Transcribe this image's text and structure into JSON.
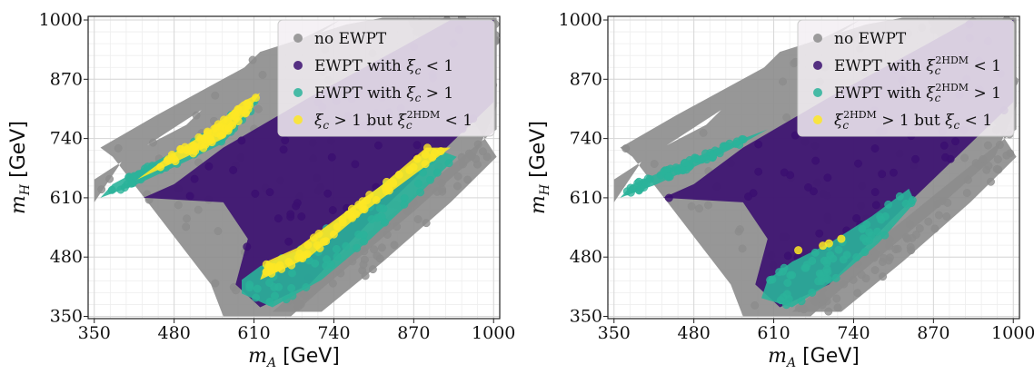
{
  "chart_data": [
    {
      "type": "scatter",
      "panel": "left",
      "title": "",
      "xlabel_var": "m",
      "xlabel_sub": "A",
      "xlabel_unit": "[GeV]",
      "ylabel_var": "m",
      "ylabel_sub": "H",
      "ylabel_unit": "[GeV]",
      "xlim": [
        340,
        1010
      ],
      "ylim": [
        345,
        1008
      ],
      "xticks": [
        350,
        480,
        610,
        740,
        870,
        1000
      ],
      "yticks": [
        350,
        480,
        610,
        740,
        870,
        1000
      ],
      "grid": true,
      "minor_grid": true,
      "legend_position": "top-right",
      "series": [
        {
          "name": "no EWPT",
          "color": "#8c8c8c",
          "regions": [
            [
              [
                350,
                650
              ],
              [
                350,
                600
              ],
              [
                400,
                700
              ],
              [
                500,
                770
              ],
              [
                620,
                930
              ],
              [
                760,
                990
              ],
              [
                820,
                1005
              ],
              [
                1005,
                1005
              ],
              [
                1005,
                810
              ],
              [
                970,
                700
              ],
              [
                870,
                580
              ],
              [
                720,
                410
              ],
              [
                670,
                350
              ],
              [
                560,
                350
              ],
              [
                540,
                420
              ],
              [
                380,
                700
              ],
              [
                360,
                720
              ],
              [
                450,
                790
              ],
              [
                600,
                900
              ],
              [
                750,
                1000
              ]
            ],
            [
              [
                860,
                1000
              ],
              [
                1005,
                1000
              ],
              [
                1005,
                760
              ],
              [
                930,
                680
              ],
              [
                820,
                560
              ],
              [
                700,
                430
              ],
              [
                640,
                360
              ],
              [
                720,
                360
              ],
              [
                820,
                470
              ],
              [
                930,
                600
              ],
              [
                1005,
                700
              ]
            ]
          ]
        },
        {
          "name": "EWPT with ξ_c < 1",
          "color": "#3b0f70",
          "regions": [
            [
              [
                430,
                610
              ],
              [
                560,
                600
              ],
              [
                600,
                520
              ],
              [
                580,
                420
              ],
              [
                620,
                370
              ],
              [
                700,
                420
              ],
              [
                800,
                560
              ],
              [
                900,
                690
              ],
              [
                1000,
                820
              ],
              [
                1000,
                1000
              ],
              [
                930,
                1000
              ],
              [
                850,
                940
              ],
              [
                700,
                830
              ],
              [
                560,
                720
              ],
              [
                480,
                640
              ]
            ]
          ]
        },
        {
          "name": "EWPT with ξ_c > 1",
          "color": "#2ab39a",
          "regions": [
            [
              [
                590,
                400
              ],
              [
                640,
                370
              ],
              [
                720,
                430
              ],
              [
                800,
                520
              ],
              [
                880,
                620
              ],
              [
                940,
                700
              ],
              [
                900,
                720
              ],
              [
                830,
                650
              ],
              [
                760,
                580
              ],
              [
                690,
                500
              ],
              [
                620,
                460
              ],
              [
                590,
                430
              ]
            ],
            [
              [
                360,
                610
              ],
              [
                420,
                640
              ],
              [
                500,
                690
              ],
              [
                560,
                730
              ],
              [
                600,
                790
              ],
              [
                620,
                830
              ],
              [
                580,
                800
              ],
              [
                520,
                740
              ],
              [
                450,
                690
              ],
              [
                380,
                640
              ]
            ]
          ]
        },
        {
          "name": "ξ_c > 1 but ξ_c^2HDM < 1",
          "color": "#fde725",
          "regions": [
            [
              [
                620,
                430
              ],
              [
                700,
                480
              ],
              [
                780,
                570
              ],
              [
                860,
                650
              ],
              [
                930,
                720
              ],
              [
                890,
                720
              ],
              [
                820,
                640
              ],
              [
                750,
                570
              ],
              [
                680,
                500
              ],
              [
                630,
                470
              ]
            ],
            [
              [
                420,
                650
              ],
              [
                500,
                700
              ],
              [
                560,
                740
              ],
              [
                600,
                800
              ],
              [
                620,
                840
              ],
              [
                590,
                820
              ],
              [
                540,
                760
              ],
              [
                470,
                700
              ]
            ]
          ]
        }
      ],
      "legend": [
        "no EWPT",
        "EWPT with ξ_c < 1",
        "EWPT with ξ_c > 1",
        "ξ_c > 1 but ξ_c^2HDM < 1"
      ]
    },
    {
      "type": "scatter",
      "panel": "right",
      "title": "",
      "xlabel_var": "m",
      "xlabel_sub": "A",
      "xlabel_unit": "[GeV]",
      "ylabel_var": "m",
      "ylabel_sub": "H",
      "ylabel_unit": "[GeV]",
      "xlim": [
        340,
        1010
      ],
      "ylim": [
        345,
        1008
      ],
      "xticks": [
        350,
        480,
        610,
        740,
        870,
        1000
      ],
      "yticks": [
        350,
        480,
        610,
        740,
        870,
        1000
      ],
      "grid": true,
      "minor_grid": true,
      "legend_position": "top-right",
      "series": [
        {
          "name": "no EWPT",
          "color": "#8c8c8c",
          "regions": [
            [
              [
                350,
                650
              ],
              [
                350,
                600
              ],
              [
                400,
                700
              ],
              [
                500,
                770
              ],
              [
                620,
                930
              ],
              [
                760,
                990
              ],
              [
                820,
                1005
              ],
              [
                1005,
                1005
              ],
              [
                1005,
                810
              ],
              [
                970,
                700
              ],
              [
                870,
                580
              ],
              [
                720,
                410
              ],
              [
                670,
                350
              ],
              [
                560,
                350
              ],
              [
                540,
                420
              ],
              [
                380,
                700
              ],
              [
                360,
                720
              ],
              [
                450,
                790
              ],
              [
                600,
                900
              ],
              [
                750,
                1000
              ]
            ],
            [
              [
                860,
                1000
              ],
              [
                1005,
                1000
              ],
              [
                1005,
                760
              ],
              [
                930,
                680
              ],
              [
                820,
                560
              ],
              [
                700,
                430
              ],
              [
                640,
                360
              ],
              [
                720,
                360
              ],
              [
                820,
                470
              ],
              [
                930,
                600
              ],
              [
                1005,
                700
              ]
            ]
          ]
        },
        {
          "name": "EWPT with ξ_c^2HDM < 1",
          "color": "#3b0f70",
          "regions": [
            [
              [
                430,
                610
              ],
              [
                560,
                600
              ],
              [
                600,
                520
              ],
              [
                580,
                420
              ],
              [
                620,
                370
              ],
              [
                700,
                420
              ],
              [
                800,
                560
              ],
              [
                900,
                690
              ],
              [
                1000,
                820
              ],
              [
                1000,
                1000
              ],
              [
                930,
                1000
              ],
              [
                850,
                940
              ],
              [
                700,
                830
              ],
              [
                560,
                720
              ],
              [
                480,
                640
              ]
            ]
          ]
        },
        {
          "name": "EWPT with ξ_c^2HDM > 1",
          "color": "#2ab39a",
          "regions": [
            [
              [
                590,
                390
              ],
              [
                640,
                370
              ],
              [
                710,
                430
              ],
              [
                780,
                510
              ],
              [
                840,
                600
              ],
              [
                830,
                630
              ],
              [
                770,
                570
              ],
              [
                700,
                510
              ],
              [
                640,
                470
              ],
              [
                600,
                430
              ]
            ],
            [
              [
                360,
                610
              ],
              [
                420,
                640
              ],
              [
                500,
                690
              ],
              [
                560,
                730
              ],
              [
                600,
                760
              ],
              [
                580,
                750
              ],
              [
                520,
                720
              ],
              [
                450,
                680
              ],
              [
                380,
                640
              ]
            ]
          ]
        },
        {
          "name": "ξ_c^2HDM > 1 but ξ_c < 1",
          "color": "#fde725",
          "points": [
            [
              650,
              495
            ],
            [
              690,
              505
            ],
            [
              700,
              510
            ],
            [
              720,
              520
            ]
          ]
        }
      ],
      "legend": [
        "no EWPT",
        "EWPT with ξ_c^2HDM < 1",
        "EWPT with ξ_c^2HDM > 1",
        "ξ_c^2HDM > 1 but ξ_c < 1"
      ]
    }
  ]
}
